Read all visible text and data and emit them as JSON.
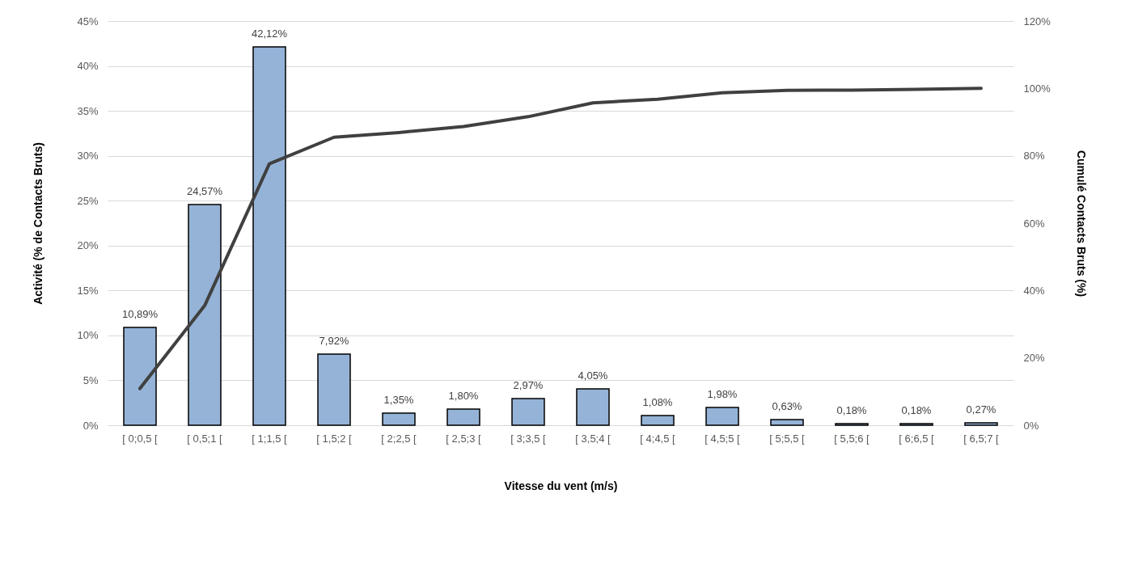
{
  "chart_data": {
    "type": "bar",
    "xlabel": "Vitesse du vent (m/s)",
    "ylabel": "Activité (% de Contacts Bruts)",
    "y2label": "Cumulé Contacts Bruts (%)",
    "categories": [
      "[ 0;0,5 [",
      "[ 0,5;1 [",
      "[ 1;1,5 [",
      "[ 1,5;2 [",
      "[ 2;2,5 [",
      "[ 2,5;3 [",
      "[ 3;3,5 [",
      "[ 3,5;4 [",
      "[ 4;4,5 [",
      "[ 4,5;5 [",
      "[ 5;5,5 [",
      "[ 5,5;6 [",
      "[ 6;6,5 [",
      "[ 6,5;7 ["
    ],
    "series": [
      {
        "color": "#95b3d7",
        "values": [
          10.89,
          24.57,
          42.12,
          7.92,
          1.35,
          1.8,
          2.97,
          4.05,
          1.08,
          1.98,
          0.63,
          0.18,
          0.18,
          0.27
        ],
        "value_labels": [
          "10,89%",
          "24,57%",
          "42,12%",
          "7,92%",
          "1,35%",
          "1,80%",
          "2,97%",
          "4,05%",
          "1,08%",
          "1,98%",
          "0,63%",
          "0,18%",
          "0,18%",
          "0,27%"
        ]
      },
      {
        "type": "line",
        "axis": "y2",
        "color": "#404040",
        "values": [
          10.9,
          35.5,
          77.6,
          85.5,
          86.9,
          88.7,
          91.6,
          95.7,
          96.8,
          98.7,
          99.4,
          99.5,
          99.7,
          100
        ]
      }
    ],
    "ylim": [
      0,
      45
    ],
    "yticks": [
      {
        "value": 0,
        "label": "0%"
      },
      {
        "value": 5,
        "label": "5%"
      },
      {
        "value": 10,
        "label": "10%"
      },
      {
        "value": 15,
        "label": "15%"
      },
      {
        "value": 20,
        "label": "20%"
      },
      {
        "value": 25,
        "label": "25%"
      },
      {
        "value": 30,
        "label": "30%"
      },
      {
        "value": 35,
        "label": "35%"
      },
      {
        "value": 40,
        "label": "40%"
      },
      {
        "value": 45,
        "label": "45%"
      }
    ],
    "y2lim": [
      0,
      120
    ],
    "y2ticks": [
      {
        "value": 0,
        "label": "0%"
      },
      {
        "value": 20,
        "label": "20%"
      },
      {
        "value": 40,
        "label": "40%"
      },
      {
        "value": 60,
        "label": "60%"
      },
      {
        "value": 80,
        "label": "80%"
      },
      {
        "value": 100,
        "label": "100%"
      },
      {
        "value": 120,
        "label": "120%"
      }
    ],
    "grid": "y"
  }
}
